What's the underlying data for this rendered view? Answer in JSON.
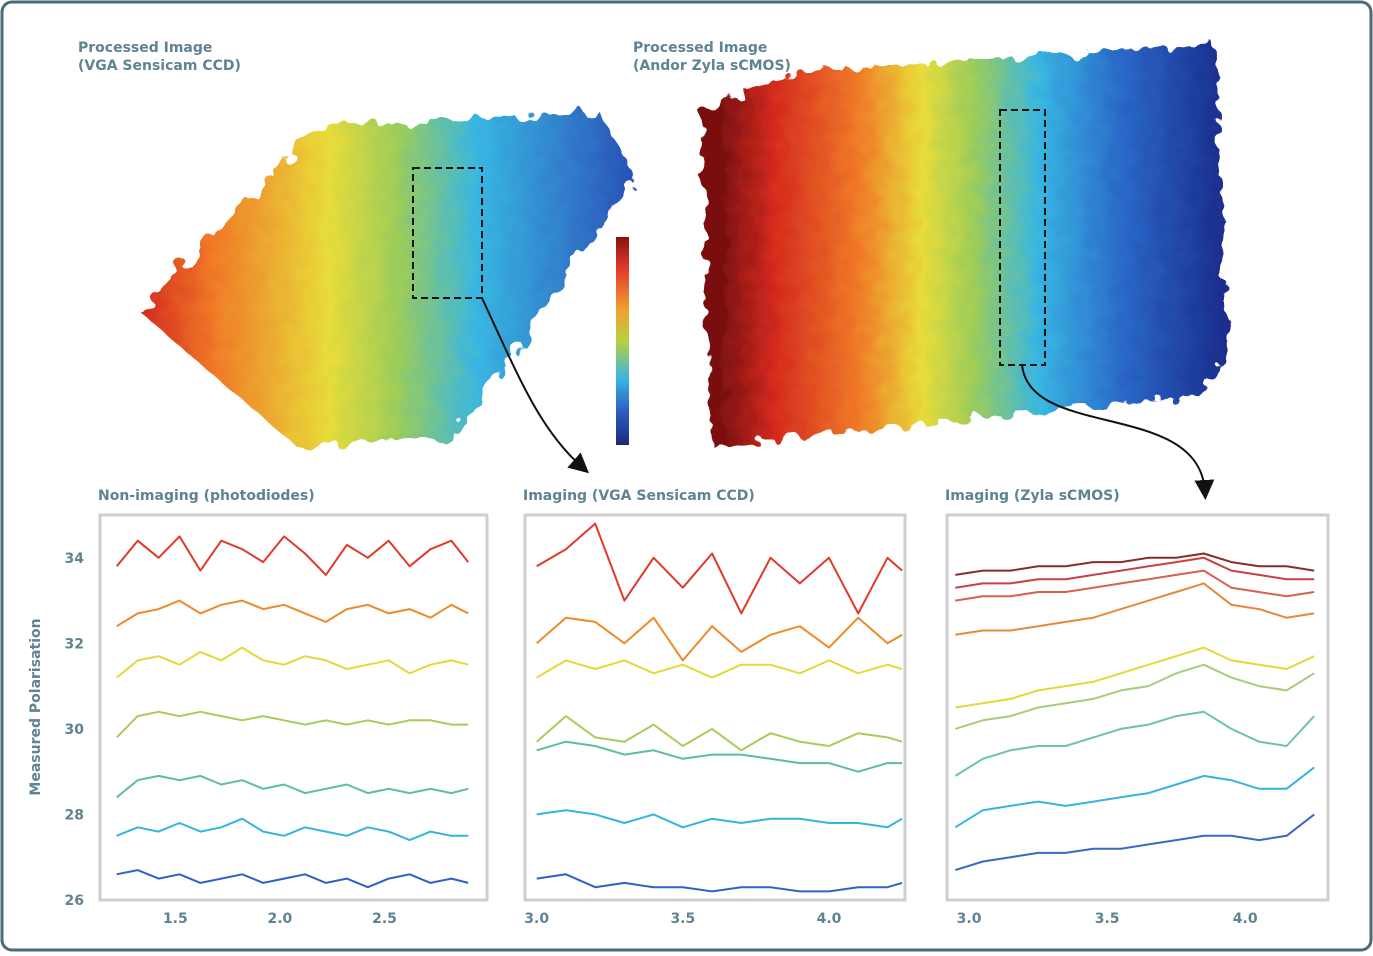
{
  "images": [
    {
      "title": [
        "Processed Image",
        "(VGA Sensicam CCD)"
      ]
    },
    {
      "title": [
        "Processed Image",
        "(Andor Zyla sCMOS)"
      ]
    }
  ],
  "chart_data": [
    {
      "type": "line",
      "title": "Non-imaging (photodiodes)",
      "y_label": "Measured Polarisation",
      "xlim": [
        1.14,
        2.99
      ],
      "ylim": [
        26,
        35
      ],
      "xticks": [
        {
          "value": 1.5,
          "label": "1.5"
        },
        {
          "value": 2,
          "label": "2.0"
        },
        {
          "value": 2.5,
          "label": "2.5"
        }
      ],
      "yticks": [
        26,
        28,
        30,
        32,
        34
      ],
      "x": [
        1.22,
        1.32,
        1.42,
        1.52,
        1.62,
        1.72,
        1.82,
        1.92,
        2.02,
        2.12,
        2.22,
        2.32,
        2.42,
        2.52,
        2.62,
        2.72,
        2.82,
        2.9
      ],
      "series": [
        {
          "color": "#e03a2a",
          "values": [
            33.8,
            34.4,
            34.0,
            34.5,
            33.7,
            34.4,
            34.2,
            33.9,
            34.5,
            34.1,
            33.6,
            34.3,
            34.0,
            34.4,
            33.8,
            34.2,
            34.4,
            33.9
          ]
        },
        {
          "color": "#ef8a2a",
          "values": [
            32.4,
            32.7,
            32.8,
            33.0,
            32.7,
            32.9,
            33.0,
            32.8,
            32.9,
            32.7,
            32.5,
            32.8,
            32.9,
            32.7,
            32.8,
            32.6,
            32.9,
            32.7
          ]
        },
        {
          "color": "#e6d83a",
          "values": [
            31.2,
            31.6,
            31.7,
            31.5,
            31.8,
            31.6,
            31.9,
            31.6,
            31.5,
            31.7,
            31.6,
            31.4,
            31.5,
            31.6,
            31.3,
            31.5,
            31.6,
            31.5
          ]
        },
        {
          "color": "#a8cc5a",
          "values": [
            29.8,
            30.3,
            30.4,
            30.3,
            30.4,
            30.3,
            30.2,
            30.3,
            30.2,
            30.1,
            30.2,
            30.1,
            30.2,
            30.1,
            30.2,
            30.2,
            30.1,
            30.1
          ]
        },
        {
          "color": "#5cbf98",
          "values": [
            28.4,
            28.8,
            28.9,
            28.8,
            28.9,
            28.7,
            28.8,
            28.6,
            28.7,
            28.5,
            28.6,
            28.7,
            28.5,
            28.6,
            28.5,
            28.6,
            28.5,
            28.6
          ]
        },
        {
          "color": "#35b4e0",
          "values": [
            27.5,
            27.7,
            27.6,
            27.8,
            27.6,
            27.7,
            27.9,
            27.6,
            27.5,
            27.7,
            27.6,
            27.5,
            27.7,
            27.6,
            27.4,
            27.6,
            27.5,
            27.5
          ]
        },
        {
          "color": "#3060c8",
          "values": [
            26.6,
            26.7,
            26.5,
            26.6,
            26.4,
            26.5,
            26.6,
            26.4,
            26.5,
            26.6,
            26.4,
            26.5,
            26.3,
            26.5,
            26.6,
            26.4,
            26.5,
            26.4
          ]
        }
      ]
    },
    {
      "type": "line",
      "title": "Imaging (VGA Sensicam CCD)",
      "xlim": [
        2.96,
        4.26
      ],
      "ylim": [
        26,
        35
      ],
      "xticks": [
        {
          "value": 3,
          "label": "3.0"
        },
        {
          "value": 3.5,
          "label": "3.5"
        },
        {
          "value": 4,
          "label": "4.0"
        }
      ],
      "x": [
        3.0,
        3.1,
        3.2,
        3.3,
        3.4,
        3.5,
        3.6,
        3.7,
        3.8,
        3.9,
        4.0,
        4.1,
        4.2,
        4.25
      ],
      "series": [
        {
          "color": "#e03a2a",
          "values": [
            33.8,
            34.2,
            34.8,
            33.0,
            34.0,
            33.3,
            34.1,
            32.7,
            34.0,
            33.4,
            34.0,
            32.7,
            34.0,
            33.7
          ]
        },
        {
          "color": "#ef8a2a",
          "values": [
            32.0,
            32.6,
            32.5,
            32.0,
            32.6,
            31.6,
            32.4,
            31.8,
            32.2,
            32.4,
            31.9,
            32.6,
            32.0,
            32.2
          ]
        },
        {
          "color": "#e6d83a",
          "values": [
            31.2,
            31.6,
            31.4,
            31.6,
            31.3,
            31.5,
            31.2,
            31.5,
            31.5,
            31.3,
            31.6,
            31.3,
            31.5,
            31.4
          ]
        },
        {
          "color": "#a8cc5a",
          "values": [
            29.7,
            30.3,
            29.8,
            29.7,
            30.1,
            29.6,
            30.0,
            29.5,
            29.9,
            29.7,
            29.6,
            29.9,
            29.8,
            29.7
          ]
        },
        {
          "color": "#5cbf98",
          "values": [
            29.5,
            29.7,
            29.6,
            29.4,
            29.5,
            29.3,
            29.4,
            29.4,
            29.3,
            29.2,
            29.2,
            29.0,
            29.2,
            29.2
          ]
        },
        {
          "color": "#35b4e0",
          "values": [
            28.0,
            28.1,
            28.0,
            27.8,
            28.0,
            27.7,
            27.9,
            27.8,
            27.9,
            27.9,
            27.8,
            27.8,
            27.7,
            27.9
          ]
        },
        {
          "color": "#3060c8",
          "values": [
            26.5,
            26.6,
            26.3,
            26.4,
            26.3,
            26.3,
            26.2,
            26.3,
            26.3,
            26.2,
            26.2,
            26.3,
            26.3,
            26.4
          ]
        }
      ]
    },
    {
      "type": "line",
      "title": "Imaging (Zyla sCMOS)",
      "xlim": [
        2.92,
        4.3
      ],
      "ylim": [
        26,
        35
      ],
      "xticks": [
        {
          "value": 3,
          "label": "3.0"
        },
        {
          "value": 3.5,
          "label": "3.5"
        },
        {
          "value": 4,
          "label": "4.0"
        }
      ],
      "x": [
        2.95,
        3.05,
        3.15,
        3.25,
        3.35,
        3.45,
        3.55,
        3.65,
        3.75,
        3.85,
        3.95,
        4.05,
        4.15,
        4.25
      ],
      "series": [
        {
          "color": "#8b2a2a",
          "values": [
            33.6,
            33.7,
            33.7,
            33.8,
            33.8,
            33.9,
            33.9,
            34.0,
            34.0,
            34.1,
            33.9,
            33.8,
            33.8,
            33.7
          ]
        },
        {
          "color": "#c94040",
          "values": [
            33.3,
            33.4,
            33.4,
            33.5,
            33.5,
            33.6,
            33.7,
            33.8,
            33.9,
            34.0,
            33.7,
            33.6,
            33.5,
            33.5
          ]
        },
        {
          "color": "#d86050",
          "values": [
            33.0,
            33.1,
            33.1,
            33.2,
            33.2,
            33.3,
            33.4,
            33.5,
            33.6,
            33.7,
            33.3,
            33.2,
            33.1,
            33.2
          ]
        },
        {
          "color": "#e58a3a",
          "values": [
            32.2,
            32.3,
            32.3,
            32.4,
            32.5,
            32.6,
            32.8,
            33.0,
            33.2,
            33.4,
            32.9,
            32.8,
            32.6,
            32.7
          ]
        },
        {
          "color": "#e6d83a",
          "values": [
            30.5,
            30.6,
            30.7,
            30.9,
            31.0,
            31.1,
            31.3,
            31.5,
            31.7,
            31.9,
            31.6,
            31.5,
            31.4,
            31.7
          ]
        },
        {
          "color": "#a8cc7a",
          "values": [
            30.0,
            30.2,
            30.3,
            30.5,
            30.6,
            30.7,
            30.9,
            31.0,
            31.3,
            31.5,
            31.2,
            31.0,
            30.9,
            31.3
          ]
        },
        {
          "color": "#6cc4a8",
          "values": [
            28.9,
            29.3,
            29.5,
            29.6,
            29.6,
            29.8,
            30.0,
            30.1,
            30.3,
            30.4,
            30.0,
            29.7,
            29.6,
            30.3
          ]
        },
        {
          "color": "#35b4e0",
          "values": [
            27.7,
            28.1,
            28.2,
            28.3,
            28.2,
            28.3,
            28.4,
            28.5,
            28.7,
            28.9,
            28.8,
            28.6,
            28.6,
            29.1
          ]
        },
        {
          "color": "#3a68c4",
          "values": [
            26.7,
            26.9,
            27.0,
            27.1,
            27.1,
            27.2,
            27.2,
            27.3,
            27.4,
            27.5,
            27.5,
            27.4,
            27.5,
            28.0
          ]
        }
      ]
    }
  ]
}
